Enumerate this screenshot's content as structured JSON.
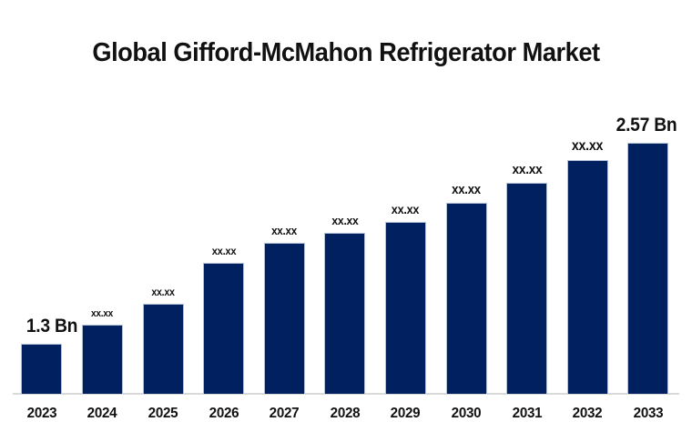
{
  "title": "Global Gifford-McMahon Refrigerator Market",
  "colors": {
    "bar_fill": "#002060",
    "bar_border": "#b3c0d6",
    "axis_line": "#d9d9d9",
    "text": "#111111",
    "background": "#ffffff"
  },
  "chart_data": {
    "type": "bar",
    "title": "Global Gifford-McMahon Refrigerator Market",
    "unit": "Bn",
    "categories": [
      "2023",
      "2024",
      "2025",
      "2026",
      "2027",
      "2028",
      "2029",
      "2030",
      "2031",
      "2032",
      "2033"
    ],
    "values": [
      1.3,
      1.42,
      1.55,
      1.81,
      1.94,
      2.0,
      2.07,
      2.19,
      2.32,
      2.46,
      2.57
    ],
    "bar_labels": [
      "1.3 Bn",
      "xx.xx",
      "xx.xx",
      "xx.xx",
      "xx.xx",
      "xx.xx",
      "xx.xx",
      "xx.xx",
      "xx.xx",
      "xx.xx",
      "2.57 Bn"
    ],
    "first_value_label": "1.3 Bn",
    "last_value_label": "2.57 Bn",
    "masked_value_label": "xx.xx",
    "xlabel": "",
    "ylabel": "",
    "ylim": [
      0.98,
      2.67
    ],
    "grid": false,
    "legend": false,
    "y_axis_visible": false,
    "x_axis_line_visible": true
  }
}
